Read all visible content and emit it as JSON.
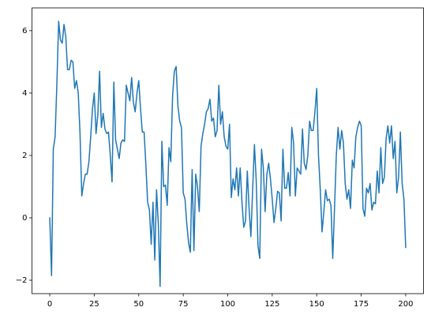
{
  "chart_data": {
    "type": "line",
    "x": [
      0,
      1,
      2,
      3,
      4,
      5,
      6,
      7,
      8,
      9,
      10,
      11,
      12,
      13,
      14,
      15,
      16,
      17,
      18,
      19,
      20,
      21,
      22,
      23,
      24,
      25,
      26,
      27,
      28,
      29,
      30,
      31,
      32,
      33,
      34,
      35,
      36,
      37,
      38,
      39,
      40,
      41,
      42,
      43,
      44,
      45,
      46,
      47,
      48,
      49,
      50,
      51,
      52,
      53,
      54,
      55,
      56,
      57,
      58,
      59,
      60,
      61,
      62,
      63,
      64,
      65,
      66,
      67,
      68,
      69,
      70,
      71,
      72,
      73,
      74,
      75,
      76,
      77,
      78,
      79,
      80,
      81,
      82,
      83,
      84,
      85,
      86,
      87,
      88,
      89,
      90,
      91,
      92,
      93,
      94,
      95,
      96,
      97,
      98,
      99,
      100,
      101,
      102,
      103,
      104,
      105,
      106,
      107,
      108,
      109,
      110,
      111,
      112,
      113,
      114,
      115,
      116,
      117,
      118,
      119,
      120,
      121,
      122,
      123,
      124,
      125,
      126,
      127,
      128,
      129,
      130,
      131,
      132,
      133,
      134,
      135,
      136,
      137,
      138,
      139,
      140,
      141,
      142,
      143,
      144,
      145,
      146,
      147,
      148,
      149,
      150,
      151,
      152,
      153,
      154,
      155,
      156,
      157,
      158,
      159,
      160,
      161,
      162,
      163,
      164,
      165,
      166,
      167,
      168,
      169,
      170,
      171,
      172,
      173,
      174,
      175,
      176,
      177,
      178,
      179,
      180,
      181,
      182,
      183,
      184,
      185,
      186,
      187,
      188,
      189,
      190,
      191,
      192,
      193,
      194,
      195,
      196,
      197,
      198,
      199,
      200
    ],
    "series": [
      {
        "color": "#1f77b4",
        "values": [
          0,
          -1.85,
          2.2,
          2.6,
          4.3,
          6.3,
          5.7,
          5.6,
          6.2,
          5.8,
          4.75,
          4.75,
          5.05,
          5.0,
          4.15,
          4.4,
          4.0,
          2.7,
          0.7,
          1.1,
          1.4,
          1.4,
          1.8,
          2.6,
          3.5,
          4.0,
          2.7,
          3.3,
          4.7,
          2.9,
          3.35,
          2.85,
          2.7,
          2.75,
          2.0,
          1.15,
          4.35,
          2.5,
          2.2,
          1.9,
          2.4,
          2.5,
          2.45,
          4.25,
          4.0,
          3.75,
          4.5,
          3.7,
          3.4,
          4.0,
          4.4,
          3.5,
          2.75,
          2.75,
          1.7,
          0.5,
          0.25,
          -0.85,
          0.5,
          -1.35,
          0.9,
          -0.2,
          -2.2,
          2.45,
          1.0,
          1.05,
          0.4,
          2.25,
          1.8,
          3.9,
          4.7,
          4.85,
          3.6,
          3.1,
          2.9,
          0.8,
          0.6,
          -0.2,
          -0.8,
          -1.1,
          1.55,
          -1.05,
          1.4,
          1.0,
          0.2,
          2.3,
          2.7,
          3.0,
          3.4,
          3.5,
          3.8,
          3.1,
          3.2,
          2.6,
          2.8,
          4.25,
          3.0,
          3.4,
          2.6,
          2.3,
          2.2,
          3.0,
          0.65,
          1.25,
          0.9,
          1.6,
          0.7,
          1.6,
          0.5,
          -0.3,
          -0.1,
          1.5,
          0.3,
          -0.6,
          0.9,
          2.35,
          1.2,
          -0.9,
          -1.3,
          2.2,
          1.6,
          0.2,
          1.4,
          1.75,
          1.25,
          0.6,
          -0.15,
          0.3,
          0.85,
          0.8,
          -0.1,
          2.2,
          0.95,
          0.95,
          1.45,
          0.7,
          2.9,
          2.4,
          0.7,
          1.6,
          1.5,
          1.4,
          2.85,
          1.75,
          1.55,
          2.0,
          3.1,
          2.8,
          2.8,
          3.4,
          4.15,
          2.0,
          0.9,
          -0.45,
          0.2,
          0.9,
          0.55,
          0.6,
          0.4,
          -1.3,
          0.3,
          2.0,
          2.9,
          2.2,
          2.8,
          2.4,
          1.1,
          0.6,
          0.9,
          0.3,
          1.85,
          1.6,
          2.6,
          2.9,
          3.1,
          2.95,
          0.3,
          0.05,
          0.95,
          0.8,
          1.1,
          0.25,
          0.5,
          0.45,
          1.5,
          0.8,
          2.25,
          1.1,
          1.3,
          2.55,
          2.95,
          2.4,
          2.95,
          1.9,
          2.45,
          0.8,
          1.3,
          2.75,
          1.1,
          0.6,
          -0.95
        ]
      }
    ],
    "xlim": [
      -10,
      210
    ],
    "ylim": [
      -2.43,
      6.73
    ],
    "xticks": [
      0,
      25,
      50,
      75,
      100,
      125,
      150,
      175,
      200
    ],
    "yticks": [
      {
        "value": -2,
        "label": "−2"
      },
      0,
      2,
      4,
      6
    ]
  }
}
